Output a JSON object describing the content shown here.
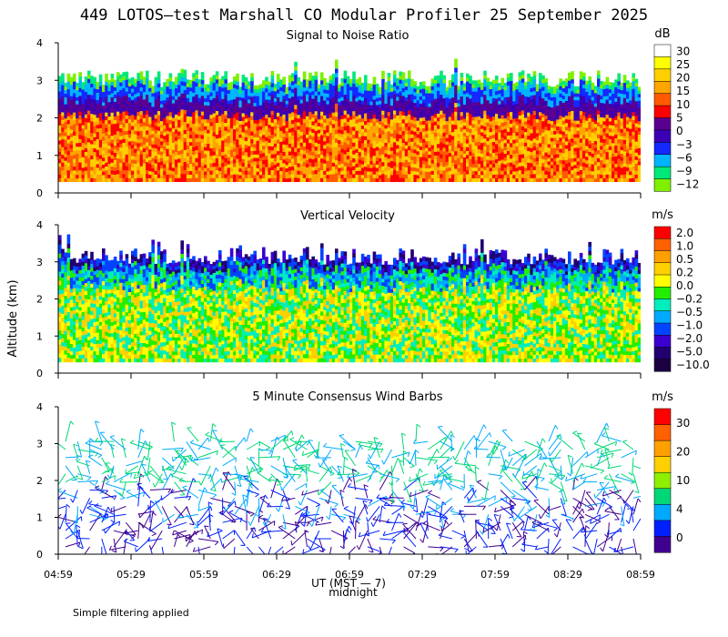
{
  "chart_data": {
    "title": "449 LOTOS—test Marshall CO Modular Profiler 25 September 2025",
    "ylabel": "Altitude (km)",
    "xlabel": "UT (MST — 7)",
    "midnight_label": "midnight",
    "footnote": "Simple filtering applied",
    "xticks": [
      "04:59",
      "05:29",
      "05:59",
      "06:29",
      "06:59",
      "07:29",
      "07:59",
      "08:29",
      "08:59"
    ],
    "yticks": [
      "0",
      "1",
      "2",
      "3",
      "4"
    ],
    "ylim": [
      0,
      4
    ],
    "panels": [
      {
        "type": "heatmap",
        "subtitle": "Signal to Noise Ratio",
        "unit": "dB",
        "colorbar_labels": [
          "30",
          "25",
          "20",
          "15",
          "10",
          "5",
          "0",
          "−3",
          "−6",
          "−9",
          "−12"
        ],
        "colors": [
          "#ffffff",
          "#ffff00",
          "#ffd000",
          "#ffa500",
          "#ff5a00",
          "#ff0000",
          "#5a0090",
          "#3c00b4",
          "#1428ff",
          "#00b4ff",
          "#00e87a",
          "#7ef000"
        ],
        "profile": {
          "top_km": 3.0,
          "strong_km": 2.2
        }
      },
      {
        "type": "heatmap",
        "subtitle": "Vertical Velocity",
        "unit": "m/s",
        "colorbar_labels": [
          "2.0",
          "1.0",
          "0.5",
          "0.2",
          "0.0",
          "−0.2",
          "−0.5",
          "−1.0",
          "−2.0",
          "−5.0",
          "−10.0"
        ],
        "colors": [
          "#ff0000",
          "#ff6000",
          "#ffa000",
          "#ffd000",
          "#ffff00",
          "#22ee00",
          "#00eebb",
          "#00aaff",
          "#0044ff",
          "#3a00d0",
          "#200070",
          "#1a0040"
        ],
        "profile": {
          "top_km": 3.1
        }
      },
      {
        "type": "scatter",
        "subtitle": "5 Minute Consensus Wind Barbs",
        "unit": "m/s",
        "colorbar_labels": [
          "30",
          "20",
          "10",
          "4",
          "0"
        ],
        "colors": [
          "#ff0000",
          "#ff6000",
          "#ffa000",
          "#ffd000",
          "#8cf000",
          "#00d877",
          "#00aaff",
          "#0020ff",
          "#400090"
        ],
        "profile": {
          "top_km": 3.2
        }
      }
    ]
  }
}
